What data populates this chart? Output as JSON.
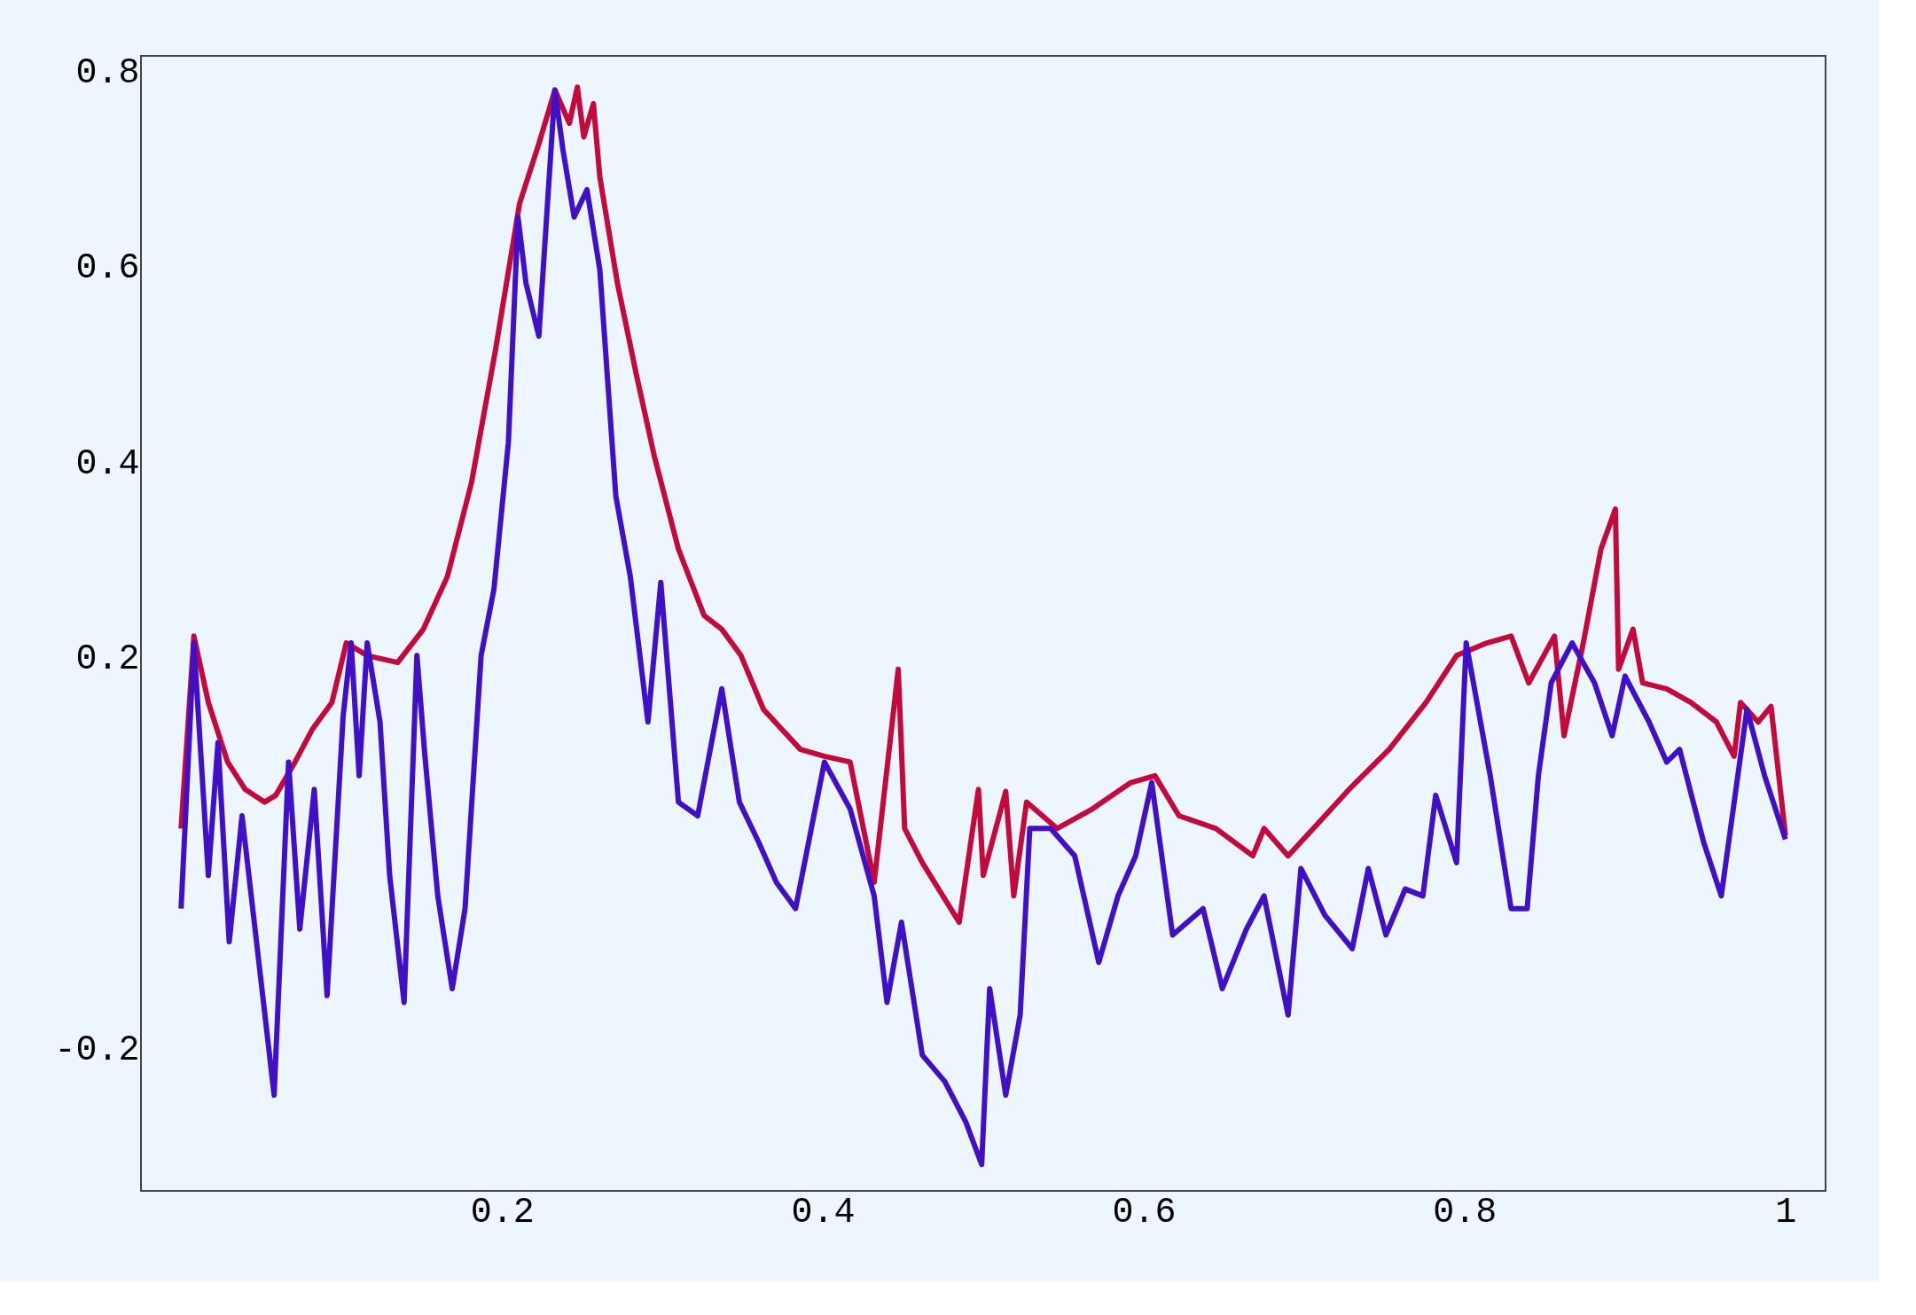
{
  "chart_data": {
    "type": "line",
    "xlim": [
      -0.025,
      1.025
    ],
    "ylim": [
      -0.346,
      0.816
    ],
    "xticks": [
      0.2,
      0.4,
      0.6,
      0.8,
      1
    ],
    "yticks": [
      -0.2,
      0.2,
      0.4,
      0.6,
      0.8
    ],
    "grid": false,
    "line_style": "solid",
    "marker": "none",
    "series": [
      {
        "color": "#c40a3c",
        "x": [
          0,
          0.008,
          0.017,
          0.029,
          0.04,
          0.052,
          0.059,
          0.071,
          0.082,
          0.094,
          0.103,
          0.116,
          0.135,
          0.151,
          0.166,
          0.181,
          0.196,
          0.211,
          0.223,
          0.233,
          0.242,
          0.247,
          0.251,
          0.257,
          0.261,
          0.272,
          0.284,
          0.295,
          0.31,
          0.326,
          0.337,
          0.349,
          0.363,
          0.386,
          0.401,
          0.417,
          0.432,
          0.447,
          0.451,
          0.462,
          0.485,
          0.497,
          0.5,
          0.514,
          0.519,
          0.527,
          0.546,
          0.568,
          0.592,
          0.607,
          0.622,
          0.645,
          0.668,
          0.675,
          0.69,
          0.713,
          0.728,
          0.753,
          0.776,
          0.795,
          0.814,
          0.829,
          0.84,
          0.856,
          0.862,
          0.874,
          0.885,
          0.894,
          0.896,
          0.905,
          0.911,
          0.926,
          0.941,
          0.957,
          0.968,
          0.972,
          0.983,
          0.991,
          1.0
        ],
        "values": [
          0.025,
          0.222,
          0.154,
          0.093,
          0.065,
          0.052,
          0.059,
          0.093,
          0.127,
          0.154,
          0.215,
          0.202,
          0.195,
          0.229,
          0.283,
          0.379,
          0.515,
          0.665,
          0.726,
          0.781,
          0.747,
          0.784,
          0.733,
          0.767,
          0.692,
          0.583,
          0.488,
          0.406,
          0.311,
          0.243,
          0.229,
          0.202,
          0.147,
          0.106,
          0.099,
          0.093,
          -0.03,
          0.188,
          0.025,
          -0.01,
          -0.071,
          0.065,
          -0.023,
          0.063,
          -0.044,
          0.052,
          0.025,
          0.045,
          0.072,
          0.079,
          0.038,
          0.025,
          -0.003,
          0.025,
          -0.003,
          0.038,
          0.065,
          0.106,
          0.154,
          0.202,
          0.215,
          0.222,
          0.174,
          0.222,
          0.12,
          0.215,
          0.311,
          0.352,
          0.188,
          0.229,
          0.174,
          0.168,
          0.154,
          0.134,
          0.099,
          0.154,
          0.134,
          0.15,
          0.018
        ]
      },
      {
        "color": "#4010c8",
        "x": [
          0,
          0.008,
          0.017,
          0.023,
          0.03,
          0.038,
          0.048,
          0.058,
          0.067,
          0.074,
          0.083,
          0.091,
          0.101,
          0.106,
          0.111,
          0.116,
          0.124,
          0.13,
          0.139,
          0.147,
          0.152,
          0.16,
          0.169,
          0.177,
          0.187,
          0.195,
          0.204,
          0.21,
          0.215,
          0.223,
          0.233,
          0.238,
          0.245,
          0.253,
          0.261,
          0.271,
          0.28,
          0.291,
          0.299,
          0.31,
          0.322,
          0.337,
          0.348,
          0.36,
          0.371,
          0.383,
          0.401,
          0.417,
          0.432,
          0.44,
          0.449,
          0.462,
          0.476,
          0.489,
          0.499,
          0.504,
          0.514,
          0.523,
          0.529,
          0.542,
          0.557,
          0.572,
          0.584,
          0.595,
          0.605,
          0.618,
          0.637,
          0.649,
          0.664,
          0.675,
          0.69,
          0.698,
          0.713,
          0.73,
          0.74,
          0.751,
          0.763,
          0.774,
          0.782,
          0.795,
          0.801,
          0.816,
          0.829,
          0.839,
          0.846,
          0.854,
          0.867,
          0.881,
          0.892,
          0.9,
          0.915,
          0.926,
          0.934,
          0.949,
          0.96,
          0.976,
          0.987,
          1.0
        ],
        "values": [
          -0.057,
          0.215,
          -0.023,
          0.113,
          -0.091,
          0.038,
          -0.105,
          -0.248,
          0.093,
          -0.078,
          0.065,
          -0.146,
          0.14,
          0.215,
          0.079,
          0.215,
          0.134,
          -0.023,
          -0.153,
          0.202,
          0.099,
          -0.044,
          -0.139,
          -0.057,
          0.202,
          0.27,
          0.42,
          0.651,
          0.583,
          0.529,
          0.781,
          0.72,
          0.651,
          0.679,
          0.597,
          0.365,
          0.283,
          0.134,
          0.277,
          0.052,
          0.038,
          0.168,
          0.052,
          0.011,
          -0.03,
          -0.057,
          0.093,
          0.045,
          -0.044,
          -0.153,
          -0.071,
          -0.207,
          -0.234,
          -0.275,
          -0.319,
          -0.139,
          -0.248,
          -0.166,
          0.025,
          0.025,
          -0.003,
          -0.112,
          -0.044,
          -0.003,
          0.072,
          -0.084,
          -0.057,
          -0.139,
          -0.078,
          -0.044,
          -0.166,
          -0.016,
          -0.064,
          -0.098,
          -0.016,
          -0.084,
          -0.037,
          -0.044,
          0.059,
          -0.01,
          0.215,
          0.079,
          -0.057,
          -0.057,
          0.079,
          0.174,
          0.215,
          0.174,
          0.12,
          0.181,
          0.134,
          0.093,
          0.106,
          0.011,
          -0.044,
          0.147,
          0.079,
          0.014
        ]
      }
    ]
  }
}
